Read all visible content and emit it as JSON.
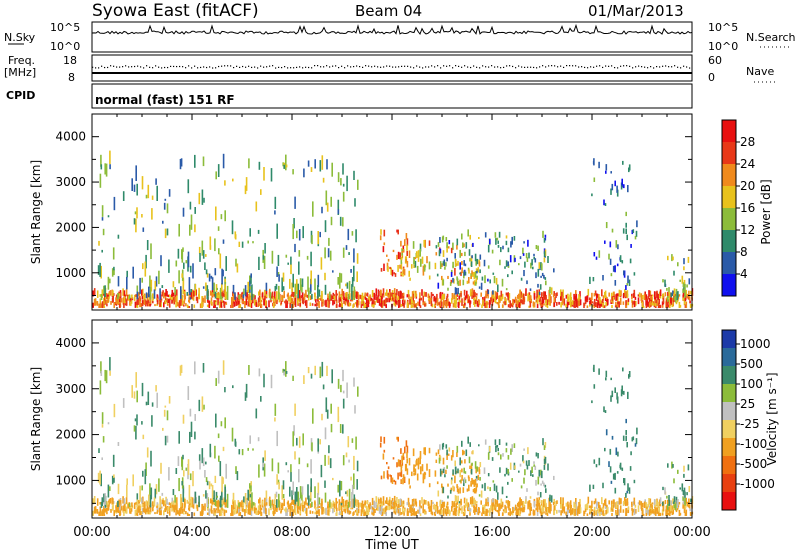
{
  "header": {
    "title": "Syowa East (fitACF)",
    "beam": "Beam 04",
    "date": "01/Mar/2013"
  },
  "nsky_panel": {
    "left_label": "N.Sky",
    "right_label": "N.Search",
    "left_ticks": [
      "10^5",
      "10^0"
    ],
    "right_ticks": [
      "10^5",
      "10^0"
    ]
  },
  "freq_panel": {
    "left_label_1": "Freq.",
    "left_label_2": "[MHz]",
    "right_label": "Nave",
    "left_ticks": [
      "18",
      "8"
    ],
    "right_ticks": [
      "60",
      "0"
    ]
  },
  "cpid_panel": {
    "label": "CPID",
    "text": "normal (fast) 151 RF"
  },
  "x_axis": {
    "label": "Time UT",
    "ticks": [
      "00:00",
      "04:00",
      "08:00",
      "12:00",
      "16:00",
      "20:00",
      "00:00"
    ]
  },
  "power_panel": {
    "ylabel": "Slant Range [km]",
    "yticks": [
      "1000",
      "2000",
      "3000",
      "4000"
    ],
    "colorbar_label": "Power [dB]",
    "colorbar_ticks": [
      "4",
      "8",
      "12",
      "16",
      "20",
      "24",
      "28"
    ],
    "colors": [
      "#1010ee",
      "#2a5aa8",
      "#2f8a6a",
      "#8cbc3a",
      "#e8c21c",
      "#f08a1c",
      "#e83818",
      "#e81010"
    ]
  },
  "velocity_panel": {
    "ylabel": "Slant Range [km]",
    "yticks": [
      "1000",
      "2000",
      "3000",
      "4000"
    ],
    "colorbar_label": "Velocity [m s⁻¹]",
    "colorbar_ticks": [
      "1000",
      "500",
      "100",
      "25",
      "-25",
      "-100",
      "-500",
      "-1000"
    ],
    "colors": [
      "#1c3aa8",
      "#2a6a9a",
      "#3a8a6a",
      "#8cbc3a",
      "#c0c0c0",
      "#f0d060",
      "#f0a020",
      "#f07010",
      "#e84010",
      "#e81010"
    ]
  },
  "chart_data": [
    {
      "type": "heatmap",
      "variable": "power",
      "unit": "dB",
      "x_range": [
        "00:00",
        "24:00"
      ],
      "ylim": [
        180,
        4500
      ],
      "zlim": [
        0,
        30
      ],
      "scatter_regions": [
        {
          "t_start": 0.0,
          "t_end": 24.0,
          "r_min": 200,
          "r_max": 500,
          "value": 24
        },
        {
          "t_start": 0.2,
          "t_end": 10.6,
          "r_min": 400,
          "r_max": 3400,
          "value": 12
        },
        {
          "t_start": 11.5,
          "t_end": 12.6,
          "r_min": 900,
          "r_max": 1900,
          "value": 26
        },
        {
          "t_start": 12.3,
          "t_end": 15.5,
          "r_min": 700,
          "r_max": 1600,
          "value": 18
        },
        {
          "t_start": 13.8,
          "t_end": 18.5,
          "r_min": 500,
          "r_max": 1800,
          "value": 10
        },
        {
          "t_start": 19.8,
          "t_end": 21.8,
          "r_min": 600,
          "r_max": 3400,
          "value": 8
        },
        {
          "t_start": 22.8,
          "t_end": 24.0,
          "r_min": 300,
          "r_max": 1300,
          "value": 14
        }
      ]
    },
    {
      "type": "heatmap",
      "variable": "velocity",
      "unit": "m/s",
      "x_range": [
        "00:00",
        "24:00"
      ],
      "ylim": [
        180,
        4500
      ],
      "zlim": [
        -1000,
        1000
      ],
      "scatter_regions": [
        {
          "t_start": 0.0,
          "t_end": 24.0,
          "r_min": 200,
          "r_max": 500,
          "value": -150
        },
        {
          "t_start": 0.2,
          "t_end": 10.6,
          "r_min": 400,
          "r_max": 3400,
          "value": 50
        },
        {
          "t_start": 11.5,
          "t_end": 12.6,
          "r_min": 900,
          "r_max": 1900,
          "value": -600
        },
        {
          "t_start": 12.3,
          "t_end": 15.5,
          "r_min": 700,
          "r_max": 1600,
          "value": -300
        },
        {
          "t_start": 13.8,
          "t_end": 18.5,
          "r_min": 500,
          "r_max": 1800,
          "value": 80
        },
        {
          "t_start": 19.8,
          "t_end": 21.8,
          "r_min": 600,
          "r_max": 3400,
          "value": 400
        },
        {
          "t_start": 22.8,
          "t_end": 24.0,
          "r_min": 300,
          "r_max": 1300,
          "value": 100
        }
      ]
    }
  ]
}
